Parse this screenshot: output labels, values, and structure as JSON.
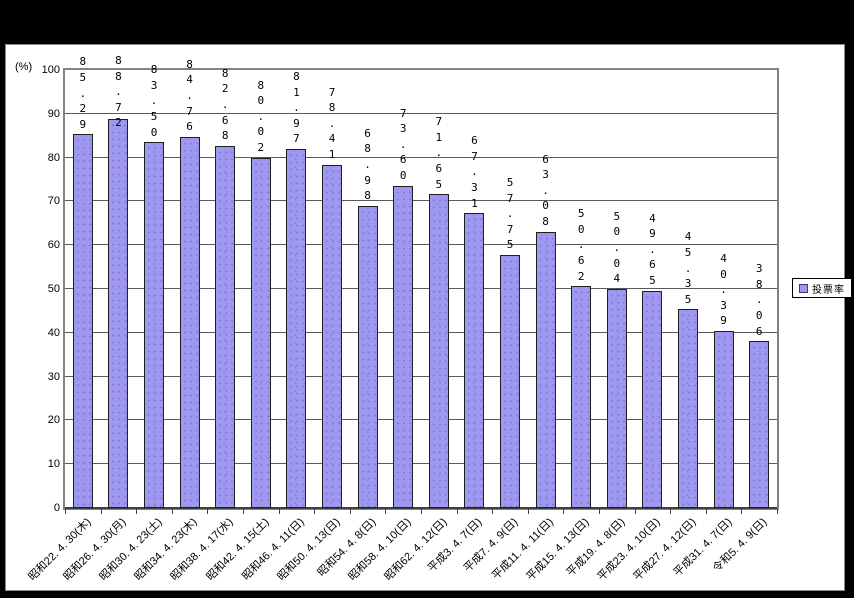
{
  "chart_data": {
    "type": "bar",
    "title": "",
    "unit_label": "(%)",
    "legend": {
      "label": "投票率",
      "position": "right"
    },
    "categories": [
      "昭和22. 4. 30(木)",
      "昭和26. 4. 30(月)",
      "昭和30. 4. 23(土)",
      "昭和34. 4. 23(木)",
      "昭和38. 4. 17(水)",
      "昭和42. 4. 15(土)",
      "昭和46. 4. 11(日)",
      "昭和50. 4. 13(日)",
      "昭和54. 4. 8(日)",
      "昭和58. 4. 10(日)",
      "昭和62. 4. 12(日)",
      "平成3. 4. 7(日)",
      "平成7. 4. 9(日)",
      "平成11. 4. 11(日)",
      "平成15. 4. 13(日)",
      "平成19. 4. 8(日)",
      "平成23. 4. 10(日)",
      "平成27. 4. 12(日)",
      "平成31. 4. 7(日)",
      "令和5. 4. 9(日)"
    ],
    "series": [
      {
        "name": "投票率",
        "values": [
          85.29,
          88.72,
          83.5,
          84.76,
          82.68,
          80.02,
          81.97,
          78.41,
          68.98,
          73.6,
          71.65,
          67.31,
          57.75,
          63.08,
          50.62,
          50.04,
          49.65,
          45.35,
          40.39,
          38.06
        ],
        "value_labels": [
          "85.29",
          "88.72",
          "83.50",
          "84.76",
          "82.68",
          "80.02",
          "81.97",
          "78.41",
          "68.98",
          "73.60",
          "71.65",
          "67.31",
          "57.75",
          "63.08",
          "50.62",
          "50.04",
          "49.65",
          "45.35",
          "40.39",
          "38.06"
        ]
      }
    ],
    "ylim": [
      0,
      100
    ],
    "yticks": [
      0,
      10,
      20,
      30,
      40,
      50,
      60,
      70,
      80,
      90,
      100
    ],
    "grid": true,
    "colors": {
      "bar_fill": "#9c9af0",
      "bar_dots": "#8d74da",
      "bar_border": "#1f1f1f",
      "gridline": "#5a5a5a",
      "plot_border": "#838383",
      "background": "#ffffff",
      "frame": "#000000",
      "text": "#000000"
    }
  }
}
